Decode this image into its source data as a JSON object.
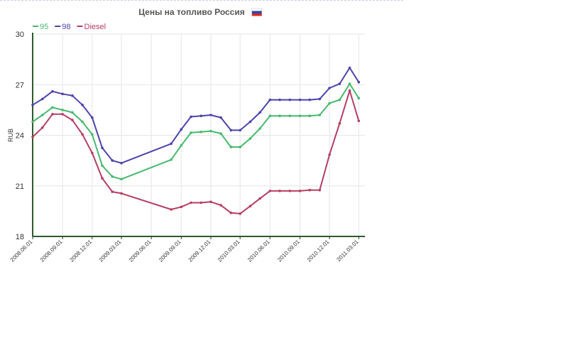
{
  "chart_data": {
    "type": "line",
    "title": "Цены на топливо Россия",
    "title_icon": "russia-flag-icon",
    "ylabel": "RUB",
    "xlabel": "",
    "ylim": [
      18,
      30
    ],
    "yticks": [
      "18",
      "21",
      "24",
      "27",
      "30"
    ],
    "xticks": [
      "2008.06.01",
      "2008.09.01",
      "2008.12.01",
      "2009.03.01",
      "2009.06.01",
      "2009.09.01",
      "2009.12.01",
      "2010.03.01",
      "2010.06.01",
      "2010.09.01",
      "2010.12.01",
      "2011.03.01"
    ],
    "xrange": [
      "2008-06-01",
      "2011-03-20"
    ],
    "grid": true,
    "legend_position": "top-left",
    "series": [
      {
        "name": "95",
        "color": "#47b96e",
        "points": [
          [
            "2008-06-01",
            24.8
          ],
          [
            "2008-07-01",
            25.2
          ],
          [
            "2008-08-01",
            25.65
          ],
          [
            "2008-09-01",
            25.5
          ],
          [
            "2008-10-01",
            25.35
          ],
          [
            "2008-11-01",
            24.8
          ],
          [
            "2008-12-01",
            24.05
          ],
          [
            "2009-01-01",
            22.2
          ],
          [
            "2009-02-01",
            21.55
          ],
          [
            "2009-03-01",
            21.4
          ],
          [
            "2009-08-01",
            22.55
          ],
          [
            "2009-09-01",
            23.4
          ],
          [
            "2009-10-01",
            24.15
          ],
          [
            "2009-11-01",
            24.2
          ],
          [
            "2009-12-01",
            24.25
          ],
          [
            "2010-01-01",
            24.1
          ],
          [
            "2010-02-01",
            23.3
          ],
          [
            "2010-03-01",
            23.3
          ],
          [
            "2010-04-01",
            23.8
          ],
          [
            "2010-05-01",
            24.4
          ],
          [
            "2010-06-01",
            25.15
          ],
          [
            "2010-07-01",
            25.15
          ],
          [
            "2010-08-01",
            25.15
          ],
          [
            "2010-09-01",
            25.15
          ],
          [
            "2010-10-01",
            25.15
          ],
          [
            "2010-11-01",
            25.2
          ],
          [
            "2010-12-01",
            25.9
          ],
          [
            "2011-01-01",
            26.1
          ],
          [
            "2011-02-01",
            27.05
          ],
          [
            "2011-03-01",
            26.2
          ]
        ]
      },
      {
        "name": "98",
        "color": "#4b44ad",
        "points": [
          [
            "2008-06-01",
            25.8
          ],
          [
            "2008-07-01",
            26.15
          ],
          [
            "2008-08-01",
            26.6
          ],
          [
            "2008-09-01",
            26.45
          ],
          [
            "2008-10-01",
            26.35
          ],
          [
            "2008-11-01",
            25.8
          ],
          [
            "2008-12-01",
            25.05
          ],
          [
            "2009-01-01",
            23.25
          ],
          [
            "2009-02-01",
            22.5
          ],
          [
            "2009-03-01",
            22.35
          ],
          [
            "2009-08-01",
            23.5
          ],
          [
            "2009-09-01",
            24.35
          ],
          [
            "2009-10-01",
            25.1
          ],
          [
            "2009-11-01",
            25.15
          ],
          [
            "2009-12-01",
            25.2
          ],
          [
            "2010-01-01",
            25.05
          ],
          [
            "2010-02-01",
            24.3
          ],
          [
            "2010-03-01",
            24.3
          ],
          [
            "2010-04-01",
            24.8
          ],
          [
            "2010-05-01",
            25.35
          ],
          [
            "2010-06-01",
            26.1
          ],
          [
            "2010-07-01",
            26.1
          ],
          [
            "2010-08-01",
            26.1
          ],
          [
            "2010-09-01",
            26.1
          ],
          [
            "2010-10-01",
            26.1
          ],
          [
            "2010-11-01",
            26.15
          ],
          [
            "2010-12-01",
            26.8
          ],
          [
            "2011-01-01",
            27.05
          ],
          [
            "2011-02-01",
            28.0
          ],
          [
            "2011-03-01",
            27.15
          ]
        ]
      },
      {
        "name": "Diesel",
        "color": "#b63e62",
        "points": [
          [
            "2008-06-01",
            23.9
          ],
          [
            "2008-07-01",
            24.45
          ],
          [
            "2008-08-01",
            25.25
          ],
          [
            "2008-09-01",
            25.25
          ],
          [
            "2008-10-01",
            24.9
          ],
          [
            "2008-11-01",
            24.05
          ],
          [
            "2008-12-01",
            22.95
          ],
          [
            "2009-01-01",
            21.45
          ],
          [
            "2009-02-01",
            20.65
          ],
          [
            "2009-03-01",
            20.55
          ],
          [
            "2009-08-01",
            19.6
          ],
          [
            "2009-09-01",
            19.75
          ],
          [
            "2009-10-01",
            20.0
          ],
          [
            "2009-11-01",
            20.0
          ],
          [
            "2009-12-01",
            20.05
          ],
          [
            "2010-01-01",
            19.85
          ],
          [
            "2010-02-01",
            19.4
          ],
          [
            "2010-03-01",
            19.35
          ],
          [
            "2010-04-01",
            19.8
          ],
          [
            "2010-05-01",
            20.25
          ],
          [
            "2010-06-01",
            20.7
          ],
          [
            "2010-07-01",
            20.7
          ],
          [
            "2010-08-01",
            20.7
          ],
          [
            "2010-09-01",
            20.7
          ],
          [
            "2010-10-01",
            20.75
          ],
          [
            "2010-11-01",
            20.75
          ],
          [
            "2010-12-01",
            22.85
          ],
          [
            "2011-01-01",
            24.7
          ],
          [
            "2011-02-01",
            26.65
          ],
          [
            "2011-03-01",
            24.85
          ]
        ]
      }
    ]
  }
}
